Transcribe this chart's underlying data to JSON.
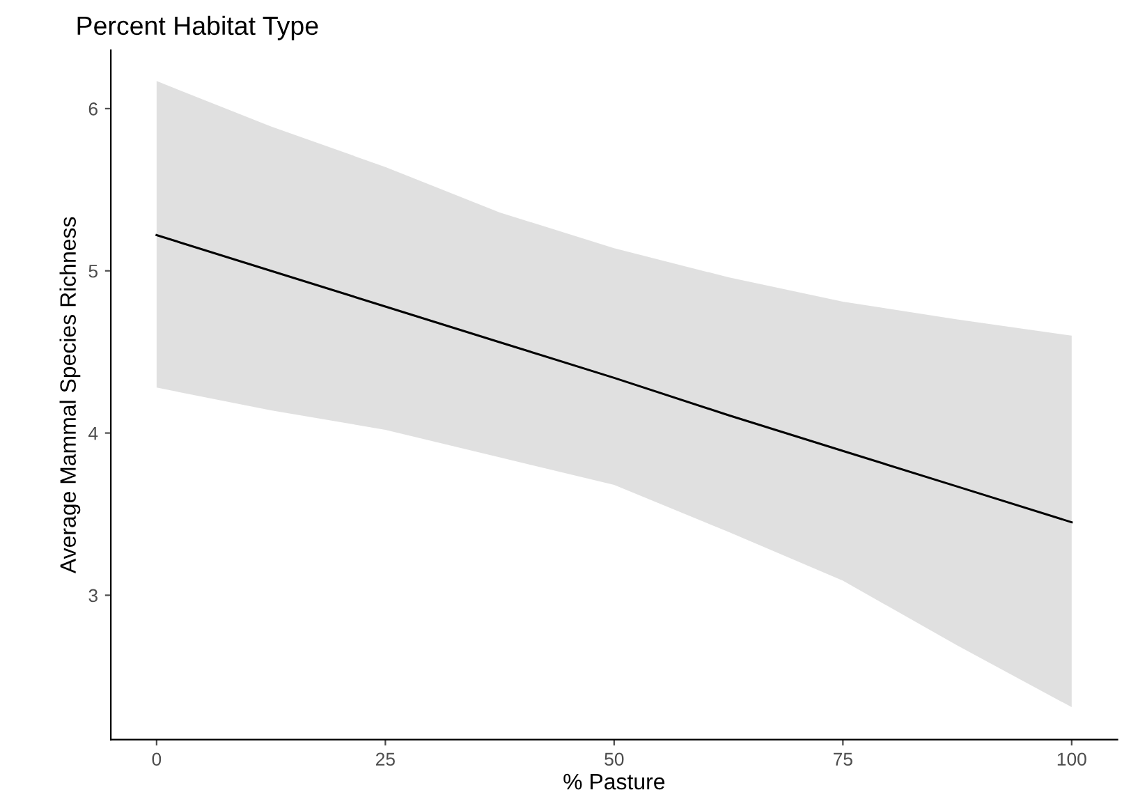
{
  "chart_data": {
    "type": "line",
    "title": "Percent Habitat Type",
    "xlabel": "% Pasture",
    "ylabel": "Average Mammal Species Richness",
    "x": [
      0,
      12.5,
      25,
      37.5,
      50,
      62.5,
      75,
      87.5,
      100
    ],
    "series": [
      {
        "color": "#000000",
        "values": [
          5.22,
          5.0,
          4.78,
          4.56,
          4.34,
          4.11,
          3.89,
          3.67,
          3.45
        ],
        "upper": [
          6.17,
          5.89,
          5.64,
          5.36,
          5.14,
          4.96,
          4.81,
          4.7,
          4.6
        ],
        "lower": [
          4.28,
          4.14,
          4.02,
          3.85,
          3.68,
          3.39,
          3.09,
          2.69,
          2.31
        ]
      }
    ],
    "xlim": [
      -5,
      105
    ],
    "ylim": [
      2.11,
      6.36
    ],
    "xticks": [
      0,
      25,
      50,
      75,
      100
    ],
    "yticks": [
      3,
      4,
      5,
      6
    ],
    "grid": false,
    "legend": false,
    "marker": "none",
    "line_style": "solid"
  }
}
